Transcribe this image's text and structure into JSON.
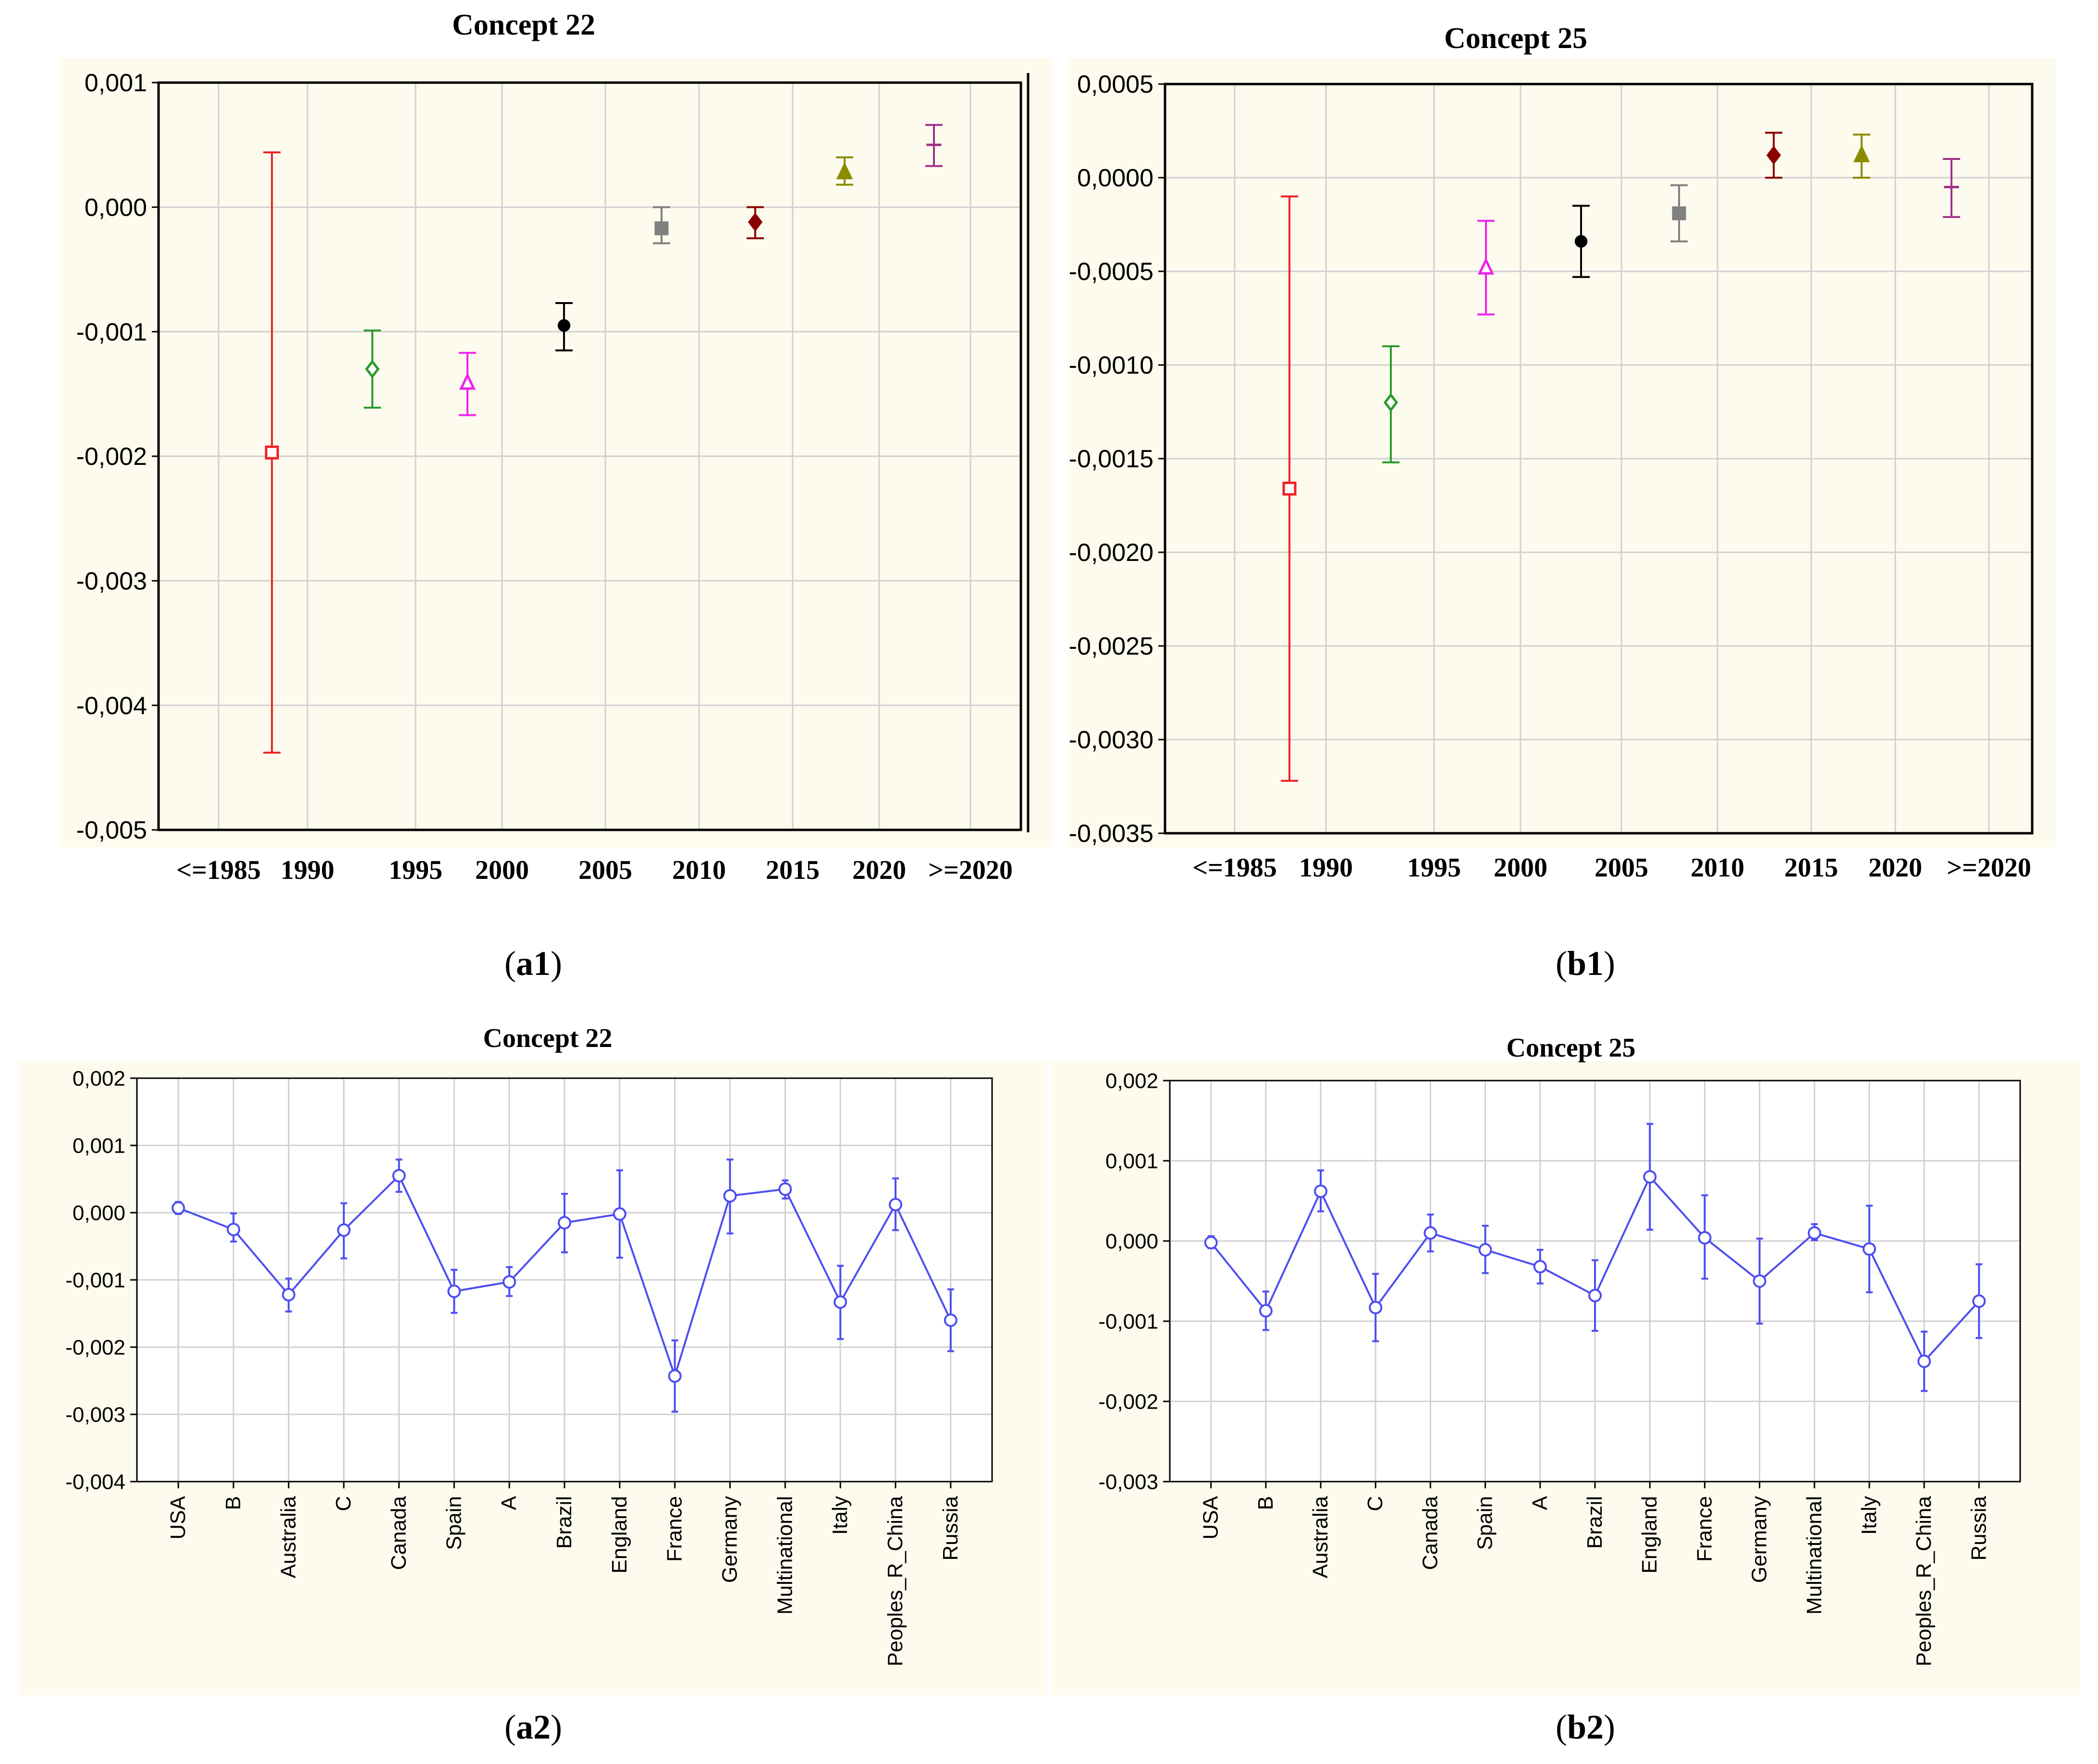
{
  "panel_labels": {
    "a1": {
      "pre": "(",
      "bold": "a1",
      "post": ")"
    },
    "b1": {
      "pre": "(",
      "bold": "b1",
      "post": ")"
    },
    "a2": {
      "pre": "(",
      "bold": "a2",
      "post": ")"
    },
    "b2": {
      "pre": "(",
      "bold": "b2",
      "post": ")"
    }
  },
  "colors": {
    "plot_background": "#fdfaee",
    "grid": "#d0d0d0",
    "axis": "#000000",
    "line_series": "#4d4df2"
  },
  "chart_data": [
    {
      "id": "a1",
      "type": "scatter",
      "error_bars": true,
      "title": "Concept  22",
      "xlabel": "",
      "ylabel": "",
      "x_tick_labels": [
        "<=1985",
        "1990",
        "1995",
        "2000",
        "2005",
        "2010",
        "2015",
        "2020",
        ">=2020"
      ],
      "y_ticks": [
        0.001,
        0,
        -0.001,
        -0.002,
        -0.003,
        -0.004,
        -0.005
      ],
      "y_tick_labels": [
        "0,001",
        "0,000",
        "-0,001",
        "-0,002",
        "-0,003",
        "-0,004",
        "-0,005"
      ],
      "ylim": [
        -0.005,
        0.001
      ],
      "grid": true,
      "points": [
        {
          "x": "1990",
          "y": -0.00197,
          "low": -0.00438,
          "high": 0.00044,
          "color": "#ee2222",
          "marker": "open-square"
        },
        {
          "x": "1995",
          "y": -0.0013,
          "low": -0.00161,
          "high": -0.00099,
          "color": "#2a9a2a",
          "marker": "open-diamond"
        },
        {
          "x": "2000",
          "y": -0.00141,
          "low": -0.00167,
          "high": -0.00117,
          "color": "#ee22ee",
          "marker": "open-triangle"
        },
        {
          "x": "2005",
          "y": -0.00095,
          "low": -0.00115,
          "high": -0.00077,
          "color": "#000000",
          "marker": "filled-circle"
        },
        {
          "x": "2010",
          "y": -0.00017,
          "low": -0.00029,
          "high": 0.0,
          "color": "#808080",
          "marker": "filled-square"
        },
        {
          "x": "2015",
          "y": -0.00012,
          "low": -0.00025,
          "high": 0.0,
          "color": "#8b0000",
          "marker": "filled-diamond"
        },
        {
          "x": "2020",
          "y": 0.00028,
          "low": 0.00018,
          "high": 0.0004,
          "color": "#8b8b00",
          "marker": "filled-triangle"
        },
        {
          "x": ">=2020",
          "y": 0.0005,
          "low": 0.00033,
          "high": 0.00066,
          "color": "#a0308a",
          "marker": "dash"
        }
      ]
    },
    {
      "id": "b1",
      "type": "scatter",
      "error_bars": true,
      "title": "Concept  25",
      "xlabel": "",
      "ylabel": "",
      "x_tick_labels": [
        "<=1985",
        "1990",
        "1995",
        "2000",
        "2005",
        "2010",
        "2015",
        "2020",
        ">=2020"
      ],
      "y_ticks": [
        0.0005,
        0,
        -0.0005,
        -0.001,
        -0.0015,
        -0.002,
        -0.0025,
        -0.003,
        -0.0035
      ],
      "y_tick_labels": [
        "0,0005",
        "0,0000",
        "-0,0005",
        "-0,0010",
        "-0,0015",
        "-0,0020",
        "-0,0025",
        "-0,0030",
        "-0,0035"
      ],
      "ylim": [
        -0.0035,
        0.0005
      ],
      "grid": true,
      "points": [
        {
          "x": "1990",
          "y": -0.00166,
          "low": -0.00322,
          "high": -0.0001,
          "color": "#ee2222",
          "marker": "open-square"
        },
        {
          "x": "1995",
          "y": -0.0012,
          "low": -0.00152,
          "high": -0.0009,
          "color": "#2a9a2a",
          "marker": "open-diamond"
        },
        {
          "x": "2000",
          "y": -0.00048,
          "low": -0.00073,
          "high": -0.00023,
          "color": "#ee22ee",
          "marker": "open-triangle"
        },
        {
          "x": "2005",
          "y": -0.00034,
          "low": -0.00053,
          "high": -0.00015,
          "color": "#000000",
          "marker": "filled-circle"
        },
        {
          "x": "2010",
          "y": -0.00019,
          "low": -0.00034,
          "high": -4e-05,
          "color": "#808080",
          "marker": "filled-square"
        },
        {
          "x": "2015",
          "y": 0.00012,
          "low": 0.0,
          "high": 0.00024,
          "color": "#8b0000",
          "marker": "filled-diamond"
        },
        {
          "x": "2020",
          "y": 0.00012,
          "low": 0.0,
          "high": 0.00023,
          "color": "#8b8b00",
          "marker": "filled-triangle"
        },
        {
          "x": ">=2020",
          "y": -5e-05,
          "low": -0.00021,
          "high": 0.0001,
          "color": "#a0308a",
          "marker": "dash"
        }
      ]
    },
    {
      "id": "a2",
      "type": "line",
      "error_bars": true,
      "title": "Concept  22",
      "xlabel": "",
      "ylabel": "",
      "categories": [
        "USA",
        "B",
        "Australia",
        "C",
        "Canada",
        "Spain",
        "A",
        "Brazil",
        "England",
        "France",
        "Germany",
        "Multinational",
        "Italy",
        "Peoples_R_China",
        "Russia"
      ],
      "y_ticks": [
        0.002,
        0.001,
        0,
        -0.001,
        -0.002,
        -0.003,
        -0.004
      ],
      "y_tick_labels": [
        "0,002",
        "0,001",
        "0,000",
        "-0,001",
        "-0,002",
        "-0,003",
        "-0,004"
      ],
      "ylim": [
        -0.004,
        0.002
      ],
      "grid": true,
      "values": [
        7e-05,
        -0.00025,
        -0.00122,
        -0.00026,
        0.00055,
        -0.00117,
        -0.00103,
        -0.00015,
        -2e-05,
        -0.00243,
        0.00025,
        0.00035,
        -0.00133,
        0.00012,
        -0.0016
      ],
      "lows": [
        -2e-05,
        -0.00043,
        -0.00147,
        -0.00068,
        0.00031,
        -0.00149,
        -0.00124,
        -0.00059,
        -0.00067,
        -0.00296,
        -0.00031,
        0.00021,
        -0.00188,
        -0.00026,
        -0.00206
      ],
      "highs": [
        0.00016,
        -1e-05,
        -0.00098,
        0.00014,
        0.00079,
        -0.00085,
        -0.00081,
        0.00028,
        0.00063,
        -0.0019,
        0.00079,
        0.00048,
        -0.00079,
        0.00051,
        -0.00114
      ]
    },
    {
      "id": "b2",
      "type": "line",
      "error_bars": true,
      "title": "Concept  25",
      "xlabel": "",
      "ylabel": "",
      "categories": [
        "USA",
        "B",
        "Australia",
        "C",
        "Canada",
        "Spain",
        "A",
        "Brazil",
        "England",
        "France",
        "Germany",
        "Multinational",
        "Italy",
        "Peoples_R_China",
        "Russia"
      ],
      "y_ticks": [
        0.002,
        0.001,
        0,
        -0.001,
        -0.002,
        -0.003
      ],
      "y_tick_labels": [
        "0,002",
        "0,001",
        "0,000",
        "-0,001",
        "-0,002",
        "-0,003"
      ],
      "ylim": [
        -0.003,
        0.002
      ],
      "grid": true,
      "values": [
        -2e-05,
        -0.00087,
        0.00062,
        -0.00083,
        0.0001,
        -0.00011,
        -0.00032,
        -0.00068,
        0.0008,
        4e-05,
        -0.0005,
        0.0001,
        -0.0001,
        -0.0015,
        -0.00075
      ],
      "lows": [
        -9e-05,
        -0.00111,
        0.00037,
        -0.00125,
        -0.00013,
        -0.0004,
        -0.00053,
        -0.00112,
        0.00014,
        -0.00047,
        -0.00103,
        1e-05,
        -0.00064,
        -0.00187,
        -0.00121
      ],
      "highs": [
        6e-05,
        -0.00063,
        0.00088,
        -0.00041,
        0.00033,
        0.00019,
        -0.00011,
        -0.00024,
        0.00146,
        0.00057,
        3e-05,
        0.00021,
        0.00044,
        -0.00113,
        -0.00029
      ]
    }
  ]
}
